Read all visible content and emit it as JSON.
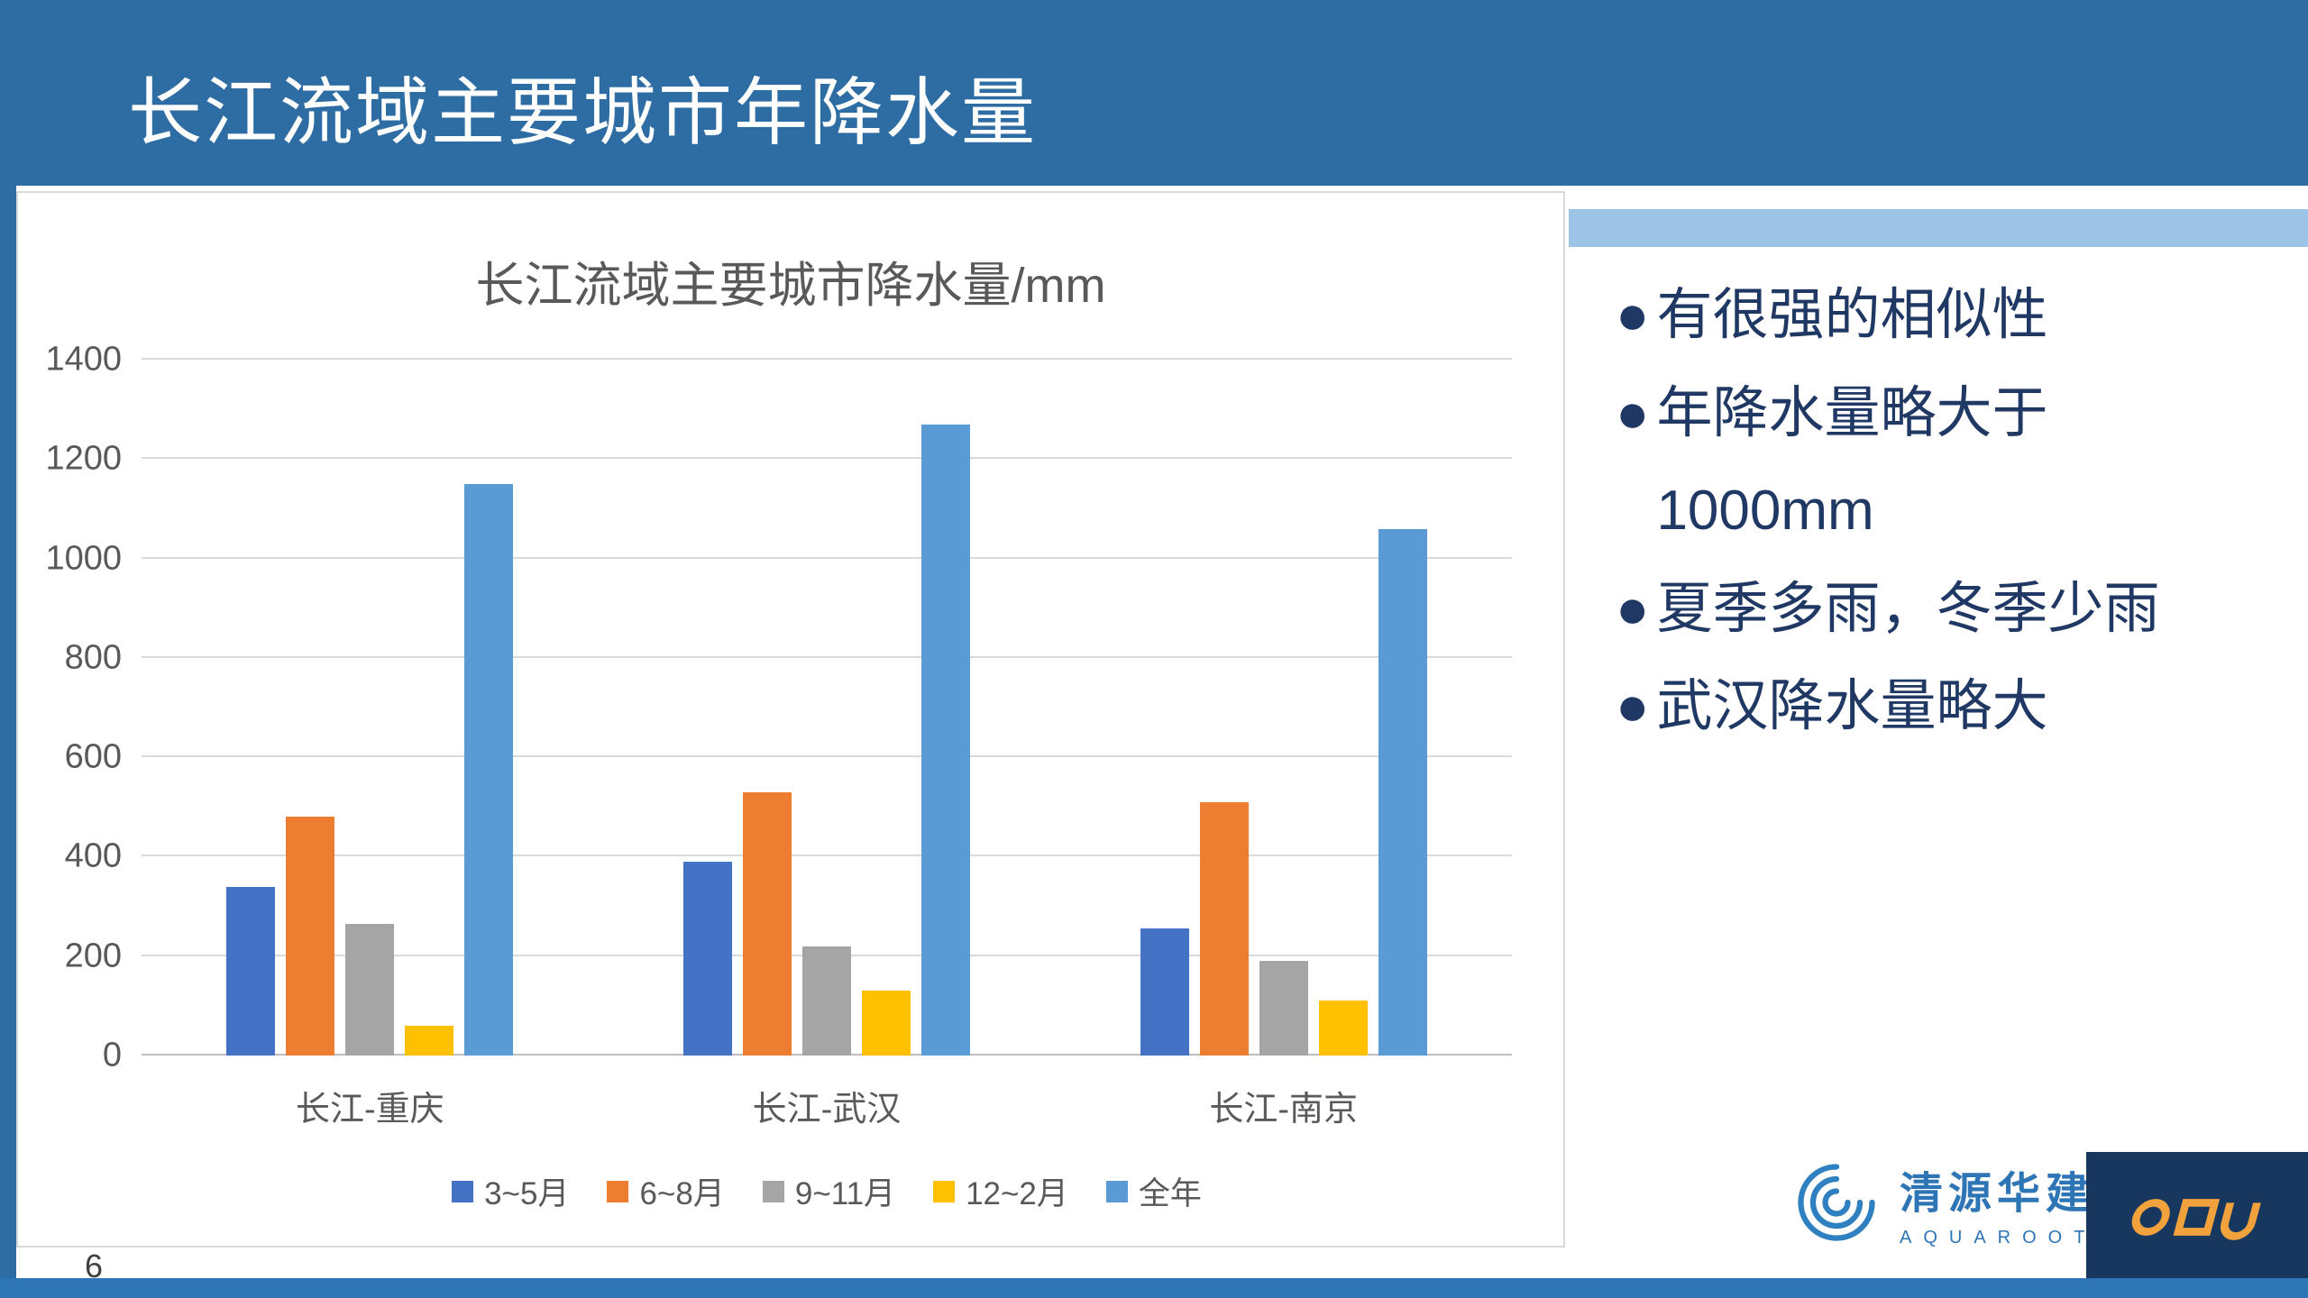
{
  "header": {
    "title": "长江流域主要城市年降水量"
  },
  "chart_data": {
    "type": "bar",
    "title": "长江流域主要城市降水量/mm",
    "categories": [
      "长江-重庆",
      "长江-武汉",
      "长江-南京"
    ],
    "series": [
      {
        "name": "3~5月",
        "color": "#4472C4",
        "values": [
          340,
          390,
          255
        ]
      },
      {
        "name": "6~8月",
        "color": "#ED7D31",
        "values": [
          480,
          530,
          510
        ]
      },
      {
        "name": "9~11月",
        "color": "#A5A5A5",
        "values": [
          265,
          220,
          190
        ]
      },
      {
        "name": "12~2月",
        "color": "#FFC000",
        "values": [
          60,
          130,
          110
        ]
      },
      {
        "name": "全年",
        "color": "#5B9BD5",
        "values": [
          1150,
          1270,
          1060
        ]
      }
    ],
    "ylim": [
      0,
      1400
    ],
    "yticks": [
      0,
      200,
      400,
      600,
      800,
      1000,
      1200,
      1400
    ],
    "grid": true,
    "legend_position": "bottom",
    "xlabel": "",
    "ylabel": ""
  },
  "bullets": {
    "marker": "●",
    "items": [
      "有很强的相似性",
      "年降水量略大于\n1000mm",
      "夏季多雨，冬季少雨",
      "武汉降水量略大"
    ]
  },
  "logo": {
    "name": "清源华建",
    "subtitle": "AQUAROOT"
  },
  "footer": {
    "page_number": "6"
  },
  "colors": {
    "header_blue": "#2E6DA4",
    "footer_blue": "#2E75B6",
    "accent_band": "#9DC3E6",
    "bullet_text": "#1F3864",
    "brand_blue": "#2E75B6",
    "partner_bg": "#17375E",
    "partner_orange": "#F2A23C"
  }
}
